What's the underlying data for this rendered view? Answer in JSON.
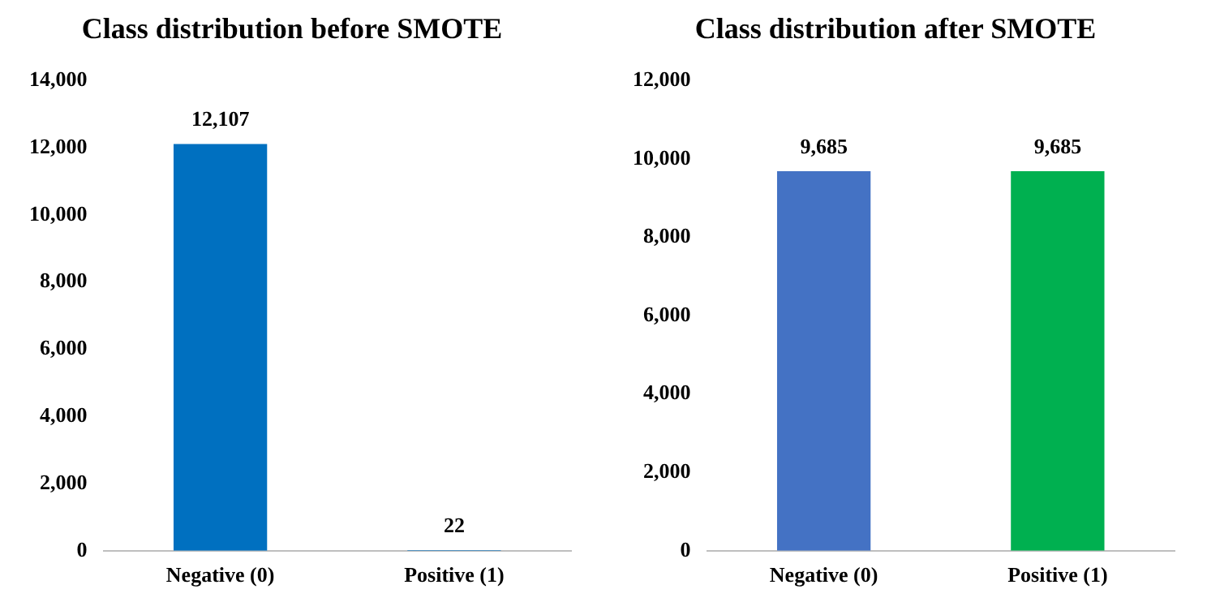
{
  "chart_data": [
    {
      "type": "bar",
      "title": "Class distribution before SMOTE",
      "categories": [
        "Negative (0)",
        "Positive (1)"
      ],
      "values": [
        12107,
        22
      ],
      "colors": [
        "#0070c0",
        "#0070c0"
      ],
      "ylim": [
        0,
        14000
      ],
      "yticks": [
        {
          "value": 0,
          "label": "0"
        },
        {
          "value": 2000,
          "label": "2,000"
        },
        {
          "value": 4000,
          "label": "4,000"
        },
        {
          "value": 6000,
          "label": "6,000"
        },
        {
          "value": 8000,
          "label": "8,000"
        },
        {
          "value": 10000,
          "label": "10,000"
        },
        {
          "value": 12000,
          "label": "12,000"
        },
        {
          "value": 14000,
          "label": "14,000"
        }
      ],
      "value_labels": [
        "12,107",
        "22"
      ],
      "grid": false,
      "legend": false
    },
    {
      "type": "bar",
      "title": "Class distribution after SMOTE",
      "categories": [
        "Negative (0)",
        "Positive (1)"
      ],
      "values": [
        9685,
        9685
      ],
      "colors": [
        "#4472c4",
        "#00b050"
      ],
      "ylim": [
        0,
        12000
      ],
      "yticks": [
        {
          "value": 0,
          "label": "0"
        },
        {
          "value": 2000,
          "label": "2,000"
        },
        {
          "value": 4000,
          "label": "4,000"
        },
        {
          "value": 6000,
          "label": "6,000"
        },
        {
          "value": 8000,
          "label": "8,000"
        },
        {
          "value": 10000,
          "label": "10,000"
        },
        {
          "value": 12000,
          "label": "12,000"
        }
      ],
      "value_labels": [
        "9,685",
        "9,685"
      ],
      "grid": false,
      "legend": false
    }
  ]
}
